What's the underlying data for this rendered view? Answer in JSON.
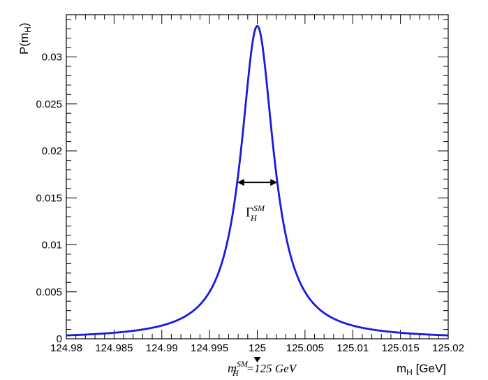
{
  "chart_data": {
    "type": "line",
    "title": "",
    "ylabel": {
      "main": "P(m",
      "sub": "H",
      "close": ")"
    },
    "xlabel": {
      "main": "m",
      "sub": "H",
      "unit": " [GeV]"
    },
    "xlim": [
      124.98,
      125.02
    ],
    "ylim": [
      0,
      0.0345
    ],
    "grid": false,
    "x_ticks": [
      124.98,
      124.985,
      124.99,
      124.995,
      125,
      125.005,
      125.01,
      125.015,
      125.02
    ],
    "x_tick_labels": [
      "124.98",
      "124.985",
      "124.99",
      "124.995",
      "125",
      "125.005",
      "125.01",
      "125.015",
      "125.02"
    ],
    "y_ticks": [
      0,
      0.005,
      0.01,
      0.015,
      0.02,
      0.025,
      0.03
    ],
    "y_tick_labels": [
      "0",
      "0.005",
      "0.01",
      "0.015",
      "0.02",
      "0.025",
      "0.03"
    ],
    "series": [
      {
        "color": "#1a1adc",
        "shape": "breit-wigner",
        "peak_x": 125.0,
        "peak_y": 0.0333,
        "fwhm": 0.0042,
        "samples": 401
      }
    ],
    "annotations": {
      "width": {
        "x_left": 124.9979,
        "x_right": 125.0021,
        "y": 0.01665,
        "label_main": "Γ",
        "label_sub": "H",
        "label_sup": "SM"
      },
      "mass_marker": {
        "x": 125.0,
        "label_main": "m",
        "label_sub": "H",
        "label_sup": "SM",
        "label_value": "=125 GeV"
      }
    }
  }
}
